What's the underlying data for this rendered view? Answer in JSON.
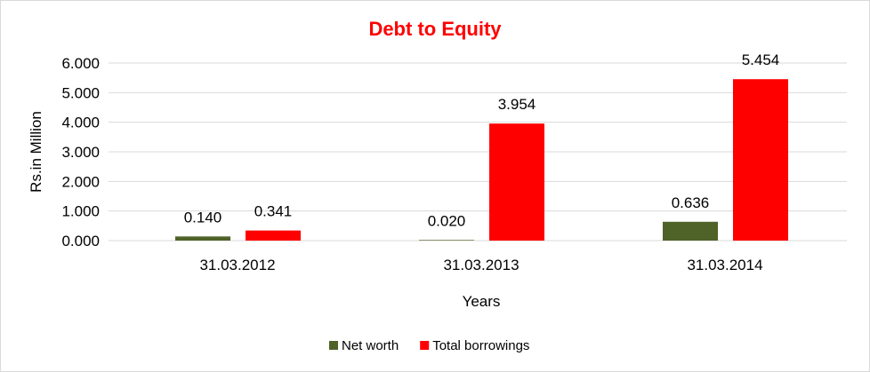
{
  "chart_data": {
    "type": "bar",
    "title": "Debt to Equity",
    "xlabel": "Years",
    "ylabel": "Rs.in Million",
    "categories": [
      "31.03.2012",
      "31.03.2013",
      "31.03.2014"
    ],
    "series": [
      {
        "name": "Net worth",
        "values": [
          0.14,
          0.02,
          0.636
        ],
        "labels": [
          "0.140",
          "0.020",
          "0.636"
        ],
        "color": "#4f6228"
      },
      {
        "name": "Total borrowings",
        "values": [
          0.341,
          3.954,
          5.454
        ],
        "labels": [
          "0.341",
          "3.954",
          "5.454"
        ],
        "color": "#ff0000"
      }
    ],
    "ylim": [
      0,
      6
    ],
    "yticks": [
      0,
      1,
      2,
      3,
      4,
      5,
      6
    ],
    "ytick_labels": [
      "0.000",
      "1.000",
      "2.000",
      "3.000",
      "4.000",
      "5.000",
      "6.000"
    ],
    "grid": true,
    "legend": "bottom",
    "title_color": "#ff0000"
  }
}
